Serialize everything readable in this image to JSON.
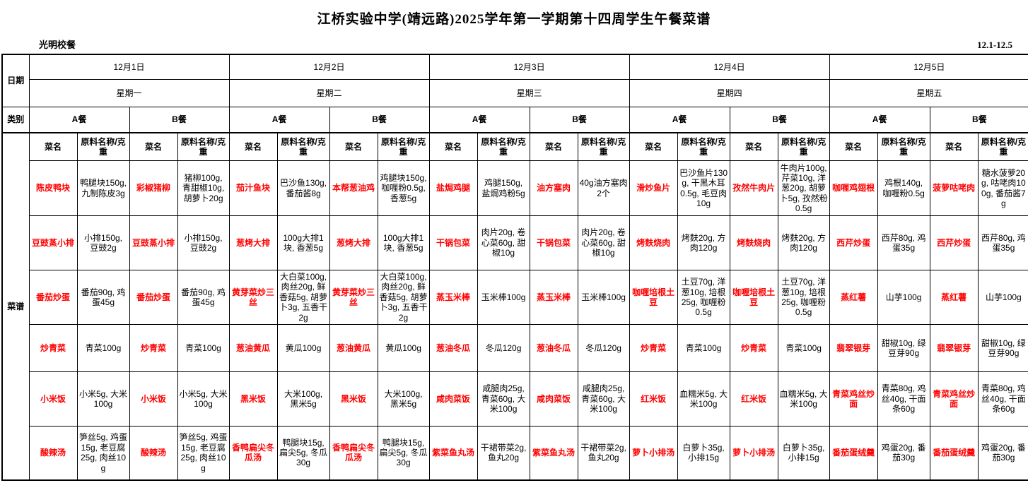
{
  "title": "江桥实验中学(靖远路)2025学年第一学期第十四周学生午餐菜谱",
  "provider": "光明校餐",
  "date_range": "12.1-12.5",
  "row_labels": {
    "date": "日期",
    "category": "类别",
    "menu": "菜谱"
  },
  "col_headers": {
    "dish": "菜名",
    "ingredient": "原料名称/克重"
  },
  "meals": {
    "a": "A餐",
    "b": "B餐"
  },
  "colors": {
    "a_bg": "#d9ebe3",
    "b_bg": "#fdf0cb",
    "dish_text": "#ff0000",
    "border": "#000000"
  },
  "days": [
    {
      "date": "12月1日",
      "weekday": "星期一",
      "a": [
        {
          "dish": "陈皮鸭块",
          "ing": "鸭腿块150g, 九制陈皮3g"
        },
        {
          "dish": "豆豉蒸小排",
          "ing": "小排150g, 豆豉2g"
        },
        {
          "dish": "番茄炒蛋",
          "ing": "番茄90g, 鸡蛋45g"
        },
        {
          "dish": "炒青菜",
          "ing": "青菜100g"
        },
        {
          "dish": "小米饭",
          "ing": "小米5g, 大米100g"
        },
        {
          "dish": "酸辣汤",
          "ing": "笋丝5g, 鸡蛋15g, 老豆腐25g, 肉丝10g"
        }
      ],
      "b": [
        {
          "dish": "彩椒猪柳",
          "ing": "猪柳100g, 青甜椒10g, 胡萝卜20g"
        },
        {
          "dish": "豆豉蒸小排",
          "ing": "小排150g, 豆豉2g"
        },
        {
          "dish": "番茄炒蛋",
          "ing": "番茄90g, 鸡蛋45g"
        },
        {
          "dish": "炒青菜",
          "ing": "青菜100g"
        },
        {
          "dish": "小米饭",
          "ing": "小米5g, 大米100g"
        },
        {
          "dish": "酸辣汤",
          "ing": "笋丝5g, 鸡蛋15g, 老豆腐25g, 肉丝10g"
        }
      ]
    },
    {
      "date": "12月2日",
      "weekday": "星期二",
      "a": [
        {
          "dish": "茄汁鱼块",
          "ing": "巴沙鱼130g, 番茄酱8g"
        },
        {
          "dish": "葱烤大排",
          "ing": "100g大排1块, 香葱5g"
        },
        {
          "dish": "黄芽菜炒三丝",
          "ing": "大白菜100g, 肉丝20g, 鲜香菇5g, 胡萝卜3g, 五香干2g"
        },
        {
          "dish": "葱油黄瓜",
          "ing": "黄瓜100g"
        },
        {
          "dish": "黑米饭",
          "ing": "大米100g, 黑米5g"
        },
        {
          "dish": "香鸭扁尖冬瓜汤",
          "ing": "鸭腿块15g, 扁尖5g, 冬瓜30g"
        }
      ],
      "b": [
        {
          "dish": "本帮葱油鸡",
          "ing": "鸡腿块150g, 咖喱粉0.5g, 香葱5g"
        },
        {
          "dish": "葱烤大排",
          "ing": "100g大排1块, 香葱5g"
        },
        {
          "dish": "黄芽菜炒三丝",
          "ing": "大白菜100g, 肉丝20g, 鲜香菇5g, 胡萝卜3g, 五香干2g"
        },
        {
          "dish": "葱油黄瓜",
          "ing": "黄瓜100g"
        },
        {
          "dish": "黑米饭",
          "ing": "大米100g, 黑米5g"
        },
        {
          "dish": "香鸭扁尖冬瓜汤",
          "ing": "鸭腿块15g, 扁尖5g, 冬瓜30g"
        }
      ]
    },
    {
      "date": "12月3日",
      "weekday": "星期三",
      "a": [
        {
          "dish": "盐焗鸡腿",
          "ing": "鸡腿150g, 盐焗鸡粉5g"
        },
        {
          "dish": "干锅包菜",
          "ing": "肉片20g, 卷心菜60g, 甜椒10g"
        },
        {
          "dish": "蒸玉米棒",
          "ing": "玉米棒100g"
        },
        {
          "dish": "葱油冬瓜",
          "ing": "冬瓜120g"
        },
        {
          "dish": "咸肉菜饭",
          "ing": "咸腿肉25g, 青菜60g, 大米100g"
        },
        {
          "dish": "紫菜鱼丸汤",
          "ing": "干裙带菜2g, 鱼丸20g"
        }
      ],
      "b": [
        {
          "dish": "油方塞肉",
          "ing": "40g油方塞肉2个"
        },
        {
          "dish": "干锅包菜",
          "ing": "肉片20g, 卷心菜60g, 甜椒10g"
        },
        {
          "dish": "蒸玉米棒",
          "ing": "玉米棒100g"
        },
        {
          "dish": "葱油冬瓜",
          "ing": "冬瓜120g"
        },
        {
          "dish": "咸肉菜饭",
          "ing": "咸腿肉25g, 青菜60g, 大米100g"
        },
        {
          "dish": "紫菜鱼丸汤",
          "ing": "干裙带菜2g, 鱼丸20g"
        }
      ]
    },
    {
      "date": "12月4日",
      "weekday": "星期四",
      "a": [
        {
          "dish": "滑炒鱼片",
          "ing": "巴沙鱼片130g, 干黑木耳0.5g, 毛豆肉10g"
        },
        {
          "dish": "烤麸烧肉",
          "ing": "烤麸20g, 方肉120g"
        },
        {
          "dish": "咖喱培根土豆",
          "ing": "土豆70g, 洋葱10g, 培根25g, 咖喱粉0.5g"
        },
        {
          "dish": "炒青菜",
          "ing": "青菜100g"
        },
        {
          "dish": "红米饭",
          "ing": "血糯米5g, 大米100g"
        },
        {
          "dish": "萝卜小排汤",
          "ing": "白萝卜35g, 小排15g"
        }
      ],
      "b": [
        {
          "dish": "孜然牛肉片",
          "ing": "牛肉片100g, 芹菜10g, 洋葱20g, 胡萝卜5g, 孜然粉0.5g"
        },
        {
          "dish": "烤麸烧肉",
          "ing": "烤麸20g, 方肉120g"
        },
        {
          "dish": "咖喱培根土豆",
          "ing": "土豆70g, 洋葱10g, 培根25g, 咖喱粉0.5g"
        },
        {
          "dish": "炒青菜",
          "ing": "青菜100g"
        },
        {
          "dish": "红米饭",
          "ing": "血糯米5g, 大米100g"
        },
        {
          "dish": "萝卜小排汤",
          "ing": "白萝卜35g, 小排15g"
        }
      ]
    },
    {
      "date": "12月5日",
      "weekday": "星期五",
      "a": [
        {
          "dish": "咖喱鸡翅根",
          "ing": "鸡根140g, 咖喱粉0.5g"
        },
        {
          "dish": "西芹炒蛋",
          "ing": "西芹80g, 鸡蛋35g"
        },
        {
          "dish": "蒸红薯",
          "ing": "山芋100g"
        },
        {
          "dish": "翡翠银芽",
          "ing": "甜椒10g, 绿豆芽90g"
        },
        {
          "dish": "青菜鸡丝炒面",
          "ing": "青菜80g, 鸡丝40g, 干面条60g"
        },
        {
          "dish": "番茄蛋绒羹",
          "ing": "鸡蛋20g, 番茄30g"
        }
      ],
      "b": [
        {
          "dish": "菠萝咕咾肉",
          "ing": "糖水菠萝20g, 咕咾肉100g, 番茄酱7g"
        },
        {
          "dish": "西芹炒蛋",
          "ing": "西芹80g, 鸡蛋35g"
        },
        {
          "dish": "蒸红薯",
          "ing": "山芋100g"
        },
        {
          "dish": "翡翠银芽",
          "ing": "甜椒10g, 绿豆芽90g"
        },
        {
          "dish": "青菜鸡丝炒面",
          "ing": "青菜80g, 鸡丝40g, 干面条60g"
        },
        {
          "dish": "番茄蛋绒羹",
          "ing": "鸡蛋20g, 番茄30g"
        }
      ]
    }
  ],
  "dish_row_heights": [
    78,
    77,
    77,
    67,
    77,
    76
  ]
}
